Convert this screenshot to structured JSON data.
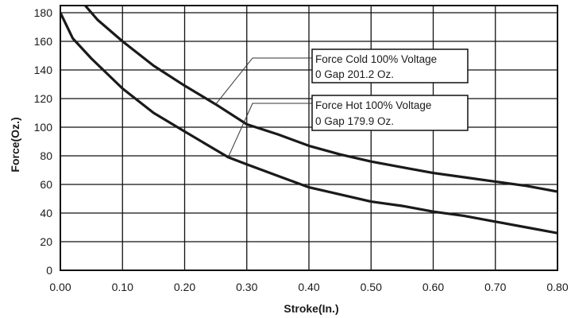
{
  "chart_data": {
    "type": "line",
    "xlabel": "Stroke(In.)",
    "ylabel": "Force(Oz.)",
    "xlim": [
      0,
      0.8
    ],
    "ylim": [
      0,
      185
    ],
    "x_ticks": [
      "0.00",
      "0.10",
      "0.20",
      "0.30",
      "0.40",
      "0.50",
      "0.60",
      "0.70",
      "0.80"
    ],
    "y_ticks": [
      "0",
      "20",
      "40",
      "60",
      "80",
      "100",
      "120",
      "140",
      "160",
      "180"
    ],
    "grid": true,
    "series": [
      {
        "name": "Force Cold 100% Voltage",
        "x": [
          0.03,
          0.06,
          0.1,
          0.15,
          0.2,
          0.25,
          0.3,
          0.35,
          0.4,
          0.45,
          0.5,
          0.55,
          0.6,
          0.65,
          0.7,
          0.75,
          0.8
        ],
        "y": [
          190,
          175,
          160,
          143,
          129,
          116,
          102,
          95,
          87,
          81,
          76,
          72,
          68,
          65,
          62,
          59,
          55
        ]
      },
      {
        "name": "Force Hot 100% Voltage",
        "x": [
          0.0,
          0.02,
          0.05,
          0.1,
          0.15,
          0.2,
          0.27,
          0.3,
          0.35,
          0.4,
          0.45,
          0.5,
          0.55,
          0.6,
          0.65,
          0.7,
          0.75,
          0.8
        ],
        "y": [
          180,
          162,
          148,
          127,
          110,
          97,
          79,
          74,
          66,
          58,
          53,
          48,
          45,
          41,
          38,
          34,
          30,
          26
        ]
      }
    ],
    "annotations": [
      {
        "line1": "Force Cold 100% Voltage",
        "line2": "0 Gap 201.2 Oz."
      },
      {
        "line1": "Force Hot 100% Voltage",
        "line2": "0 Gap 179.9 Oz."
      }
    ]
  }
}
